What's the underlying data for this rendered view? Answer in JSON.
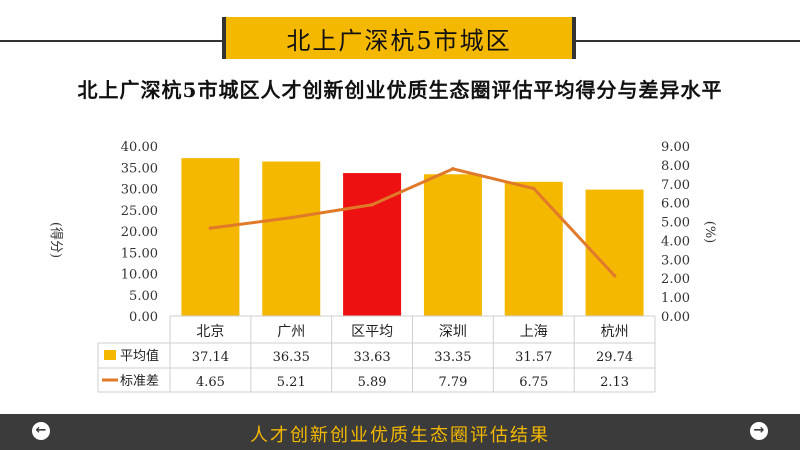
{
  "header": {
    "title": "北上广深杭5市城区"
  },
  "chart_data": {
    "type": "bar",
    "title": "北上广深杭5市城区人才创新创业优质生态圈评估平均得分与差异水平",
    "categories": [
      "北京",
      "广州",
      "区平均",
      "深圳",
      "上海",
      "杭州"
    ],
    "ylabel": "(得分)",
    "y2label": "(%)",
    "ylim": [
      0,
      40
    ],
    "y2lim": [
      0,
      9
    ],
    "yticks": [
      "0.00",
      "5.00",
      "10.00",
      "15.00",
      "20.00",
      "25.00",
      "30.00",
      "35.00",
      "40.00"
    ],
    "y2ticks": [
      "0.00",
      "1.00",
      "2.00",
      "3.00",
      "4.00",
      "5.00",
      "6.00",
      "7.00",
      "8.00",
      "9.00"
    ],
    "series": [
      {
        "name": "平均值",
        "kind": "bar",
        "values": [
          37.14,
          36.35,
          33.63,
          33.35,
          31.57,
          29.74
        ],
        "labels": [
          "37.14",
          "36.35",
          "33.63",
          "33.35",
          "31.57",
          "29.74"
        ]
      },
      {
        "name": "标准差",
        "kind": "line",
        "axis": "right",
        "values": [
          4.65,
          5.21,
          5.89,
          7.79,
          6.75,
          2.13
        ],
        "labels": [
          "4.65",
          "5.21",
          "5.89",
          "7.79",
          "6.75",
          "2.13"
        ]
      }
    ],
    "highlight_category": "区平均",
    "grid": false,
    "legend": "bottom data table"
  },
  "colors": {
    "bar": "#f5b800",
    "highlight": "#ee1111",
    "line": "#e07a2a",
    "accent": "#f5b800",
    "footer_bg": "#3b3b3b"
  },
  "footer": {
    "text": "人才创新创业优质生态圈评估结果",
    "prev_icon": "arrow-left-circle-icon",
    "next_icon": "arrow-right-circle-icon"
  }
}
